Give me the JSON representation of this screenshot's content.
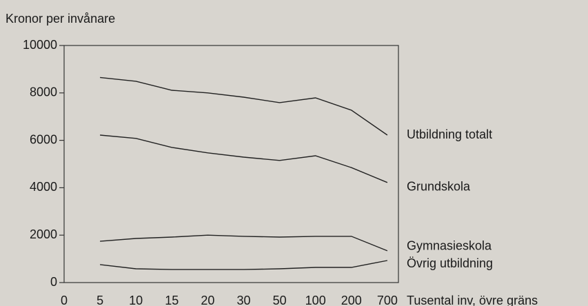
{
  "chart_data": {
    "type": "line",
    "y_label": "Kronor per invånare",
    "x_label": "Tusental inv, övre gräns",
    "categories": [
      "0",
      "5",
      "10",
      "15",
      "20",
      "30",
      "50",
      "100",
      "200",
      "700"
    ],
    "series": [
      {
        "name": "Utbildning totalt",
        "color": "#222222",
        "values": [
          null,
          8650,
          8490,
          8110,
          8000,
          7820,
          7590,
          7790,
          7270,
          6220
        ]
      },
      {
        "name": "Grundskola",
        "color": "#222222",
        "values": [
          null,
          6220,
          6080,
          5700,
          5470,
          5290,
          5150,
          5350,
          4850,
          4220
        ]
      },
      {
        "name": "Gymnasieskola",
        "color": "#222222",
        "values": [
          null,
          1740,
          1860,
          1920,
          2000,
          1950,
          1920,
          1950,
          1950,
          1340
        ]
      },
      {
        "name": "Övrig utbildning",
        "color": "#222222",
        "values": [
          null,
          760,
          580,
          550,
          550,
          550,
          580,
          640,
          640,
          930
        ]
      }
    ],
    "ylim": [
      0,
      10000
    ],
    "yticks": [
      0,
      2000,
      4000,
      6000,
      8000,
      10000
    ],
    "grid": false
  }
}
